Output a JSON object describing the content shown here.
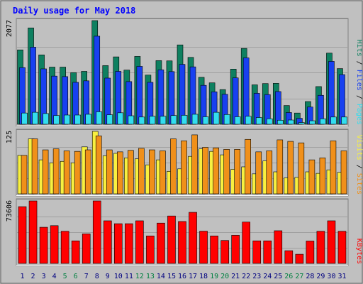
{
  "chart_data": {
    "type": "bar",
    "title": "Daily usage for May 2018",
    "x": [
      "1",
      "2",
      "3",
      "4",
      "5",
      "6",
      "7",
      "8",
      "9",
      "10",
      "11",
      "12",
      "13",
      "14",
      "15",
      "16",
      "17",
      "18",
      "19",
      "20",
      "21",
      "22",
      "23",
      "24",
      "25",
      "26",
      "27",
      "28",
      "29",
      "30",
      "31"
    ],
    "weekend_days": [
      "5",
      "6",
      "12",
      "13",
      "19",
      "20",
      "26",
      "27"
    ],
    "panels": [
      {
        "id": "hits",
        "max_label": "2077",
        "ymax": 2077,
        "series": [
          {
            "name": "Hits",
            "color": "#0e8060",
            "values": [
              1490,
              1930,
              1390,
              1145,
              1145,
              1035,
              1060,
              2077,
              1175,
              1350,
              1085,
              1360,
              985,
              1275,
              1270,
              1590,
              1340,
              940,
              830,
              695,
              1105,
              1520,
              790,
              815,
              820,
              375,
              225,
              455,
              755,
              1425,
              1115
            ]
          },
          {
            "name": "Files",
            "color": "#1840f0",
            "values": [
              1135,
              1545,
              1110,
              965,
              955,
              840,
              870,
              1765,
              925,
              1060,
              855,
              1160,
              840,
              1090,
              1055,
              1200,
              1150,
              780,
              650,
              600,
              930,
              1330,
              620,
              595,
              655,
              235,
              120,
              345,
              580,
              1260,
              995
            ]
          },
          {
            "name": "Pages",
            "color": "#33ddee",
            "values": [
              225,
              240,
              215,
              175,
              185,
              185,
              200,
              250,
              190,
              230,
              170,
              145,
              160,
              160,
              175,
              180,
              200,
              150,
              240,
              195,
              150,
              160,
              135,
              110,
              80,
              85,
              35,
              70,
              110,
              145,
              145
            ]
          }
        ]
      },
      {
        "id": "visits",
        "max_label": "125",
        "ymax": 125,
        "series": [
          {
            "name": "Visits",
            "color": "#f8f040",
            "values": [
              77,
              110,
              68,
              62,
              65,
              62,
              94,
              125,
              76,
              81,
              72,
              70,
              58,
              68,
              45,
              50,
              75,
              90,
              85,
              78,
              49,
              54,
              40,
              66,
              44,
              32,
              33,
              44,
              41,
              48,
              43
            ]
          },
          {
            "name": "Sites",
            "color": "#f0901a",
            "values": [
              77,
              110,
              88,
              90,
              86,
              85,
              88,
              116,
              88,
              84,
              87,
              91,
              88,
              86,
              110,
              106,
              118,
              93,
              92,
              89,
              89,
              109,
              84,
              86,
              108,
              105,
              102,
              68,
              72,
              106,
              86
            ]
          }
        ]
      },
      {
        "id": "kbytes",
        "max_label": "73606",
        "ymax": 73606,
        "series": [
          {
            "name": "KBytes",
            "color": "#ff0000",
            "values": [
              66880,
              73606,
              42600,
              44500,
              37900,
              26580,
              34800,
              73606,
              50200,
              46800,
              46800,
              50200,
              32400,
              47500,
              55900,
              49400,
              60200,
              38000,
              32400,
              27000,
              33150,
              48700,
              26600,
              26600,
              38500,
              15000,
              10800,
              26400,
              37900,
              50200,
              37900
            ]
          }
        ]
      }
    ],
    "right_labels": [
      {
        "parts": [
          "Pages",
          "Files",
          "Hits"
        ],
        "colors": [
          "#33ddee",
          "#1840f0",
          "#0e8060"
        ],
        "sep": " / "
      },
      {
        "parts": [
          "Sites",
          "Visits"
        ],
        "colors": [
          "#f0901a",
          "#f8f040"
        ],
        "sep": " / "
      },
      {
        "parts": [
          "KBytes"
        ],
        "colors": [
          "#ff0000"
        ],
        "sep": ""
      }
    ],
    "colors": {
      "title": "#0000ff",
      "day_normal": "#000080",
      "day_weekend": "#008040",
      "axis_label": "#000000",
      "background": "#c0c0c0",
      "panel_bg": "#c0c0c0"
    }
  }
}
